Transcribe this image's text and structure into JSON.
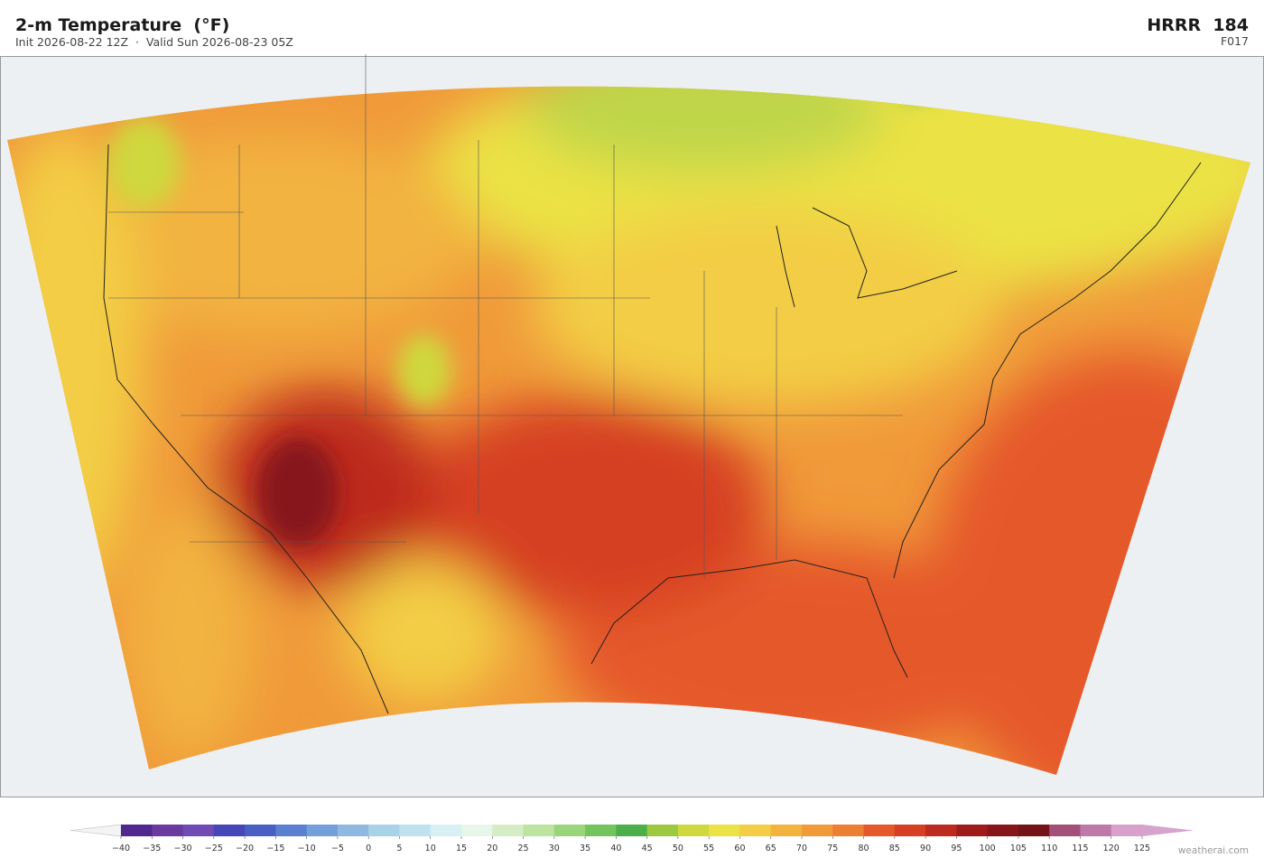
{
  "header": {
    "title": "2-m Temperature  (°F)",
    "subtitle": "Init 2026-08-22 12Z  ·  Valid Sun 2026-08-23 05Z",
    "model": "HRRR  184",
    "forecast_hour": "F017"
  },
  "colorbar": {
    "ticks": [
      {
        "value": -40,
        "label": "−40"
      },
      {
        "value": -35,
        "label": "−35"
      },
      {
        "value": -30,
        "label": "−30"
      },
      {
        "value": -25,
        "label": "−25"
      },
      {
        "value": -20,
        "label": "−20"
      },
      {
        "value": -15,
        "label": "−15"
      },
      {
        "value": -10,
        "label": "−10"
      },
      {
        "value": -5,
        "label": "−5"
      },
      0,
      5,
      10,
      15,
      20,
      25,
      30,
      35,
      40,
      45,
      50,
      55,
      60,
      65,
      70,
      75,
      80,
      85,
      90,
      95,
      100,
      105,
      110,
      115,
      120,
      125
    ],
    "colors": [
      "#50288f",
      "#6a3a9e",
      "#6f4bb3",
      "#4546b8",
      "#4a5fc4",
      "#5a80cf",
      "#73a0d8",
      "#8fb9e0",
      "#a8d2e8",
      "#c0e2ef",
      "#d8f0f4",
      "#e6f6e8",
      "#d4edc4",
      "#bde3a0",
      "#9ad57c",
      "#74c45e",
      "#4caf4a",
      "#9cc940",
      "#cfd83e",
      "#ebe245",
      "#f3cd45",
      "#f2b33f",
      "#f09a3a",
      "#ec7f33",
      "#e5582a",
      "#d63f23",
      "#bd2a1f",
      "#9e1d1c",
      "#86161a",
      "#741418",
      "#a2507a",
      "#bf78aa",
      "#d9a0cc"
    ],
    "under_color": "#f4f4f4",
    "over_color": "#d6a3cc"
  },
  "watermark": "weatherai.com"
}
